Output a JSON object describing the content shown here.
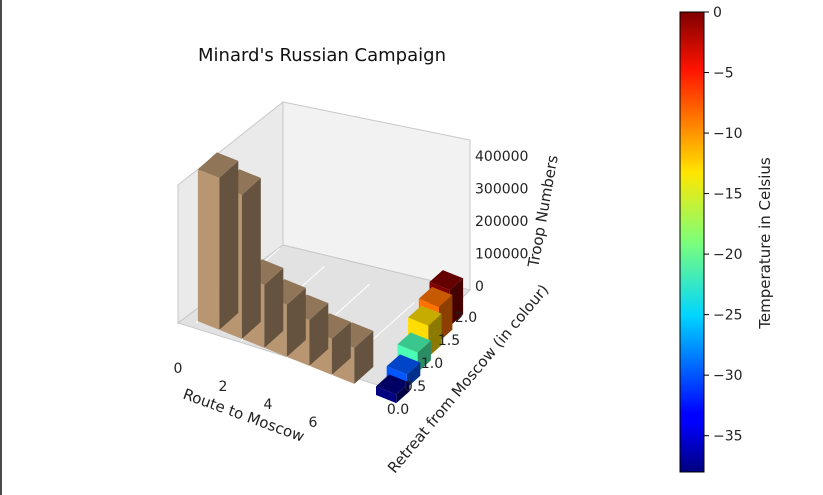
{
  "chart_data": {
    "type": "bar",
    "title": "Minard's Russian Campaign",
    "xlabel": "Route to Moscow",
    "ylabel": "Retreat from Moscow (in colour)",
    "zlabel": "Troop Numbers",
    "x_ticks": [
      "0",
      "2",
      "4",
      "6"
    ],
    "y_ticks": [
      "0.0",
      "0.5",
      "1.0",
      "1.5",
      "2.0"
    ],
    "z_ticks": [
      "0",
      "100000",
      "200000",
      "300000",
      "400000"
    ],
    "xlim": [
      0,
      8
    ],
    "ylim": [
      0,
      2.2
    ],
    "zlim": [
      0,
      450000
    ],
    "advance": {
      "name": "Route to Moscow",
      "color": "#b89672",
      "x": [
        0,
        1,
        2,
        3,
        4,
        5,
        6
      ],
      "values": [
        422000,
        400000,
        175000,
        145000,
        127100,
        100000,
        100000
      ]
    },
    "retreat": {
      "name": "Retreat from Moscow",
      "temperatures": [
        0,
        -9,
        -21,
        -11,
        -20,
        -24,
        -30,
        -26,
        -38
      ],
      "bars": [
        {
          "x": 6,
          "y": 2.0,
          "value": 100000,
          "temperature": 0
        },
        {
          "x": 6.2,
          "y": 1.6,
          "value": 96000,
          "temperature": -9
        },
        {
          "x": 6.4,
          "y": 1.2,
          "value": 87000,
          "temperature": -13
        },
        {
          "x": 6.6,
          "y": 0.8,
          "value": 55000,
          "temperature": -21
        },
        {
          "x": 6.8,
          "y": 0.4,
          "value": 37000,
          "temperature": -30
        },
        {
          "x": 7.0,
          "y": 0.0,
          "value": 24000,
          "temperature": -38
        }
      ]
    },
    "colorbar": {
      "label": "Temperature in Celsius",
      "colormap": "jet",
      "range": [
        -38,
        0
      ],
      "ticks": [
        "0",
        "−5",
        "−10",
        "−15",
        "−20",
        "−25",
        "−30",
        "−35"
      ],
      "tick_values": [
        0,
        -5,
        -10,
        -15,
        -20,
        -25,
        -30,
        -35
      ]
    },
    "grid": true
  }
}
